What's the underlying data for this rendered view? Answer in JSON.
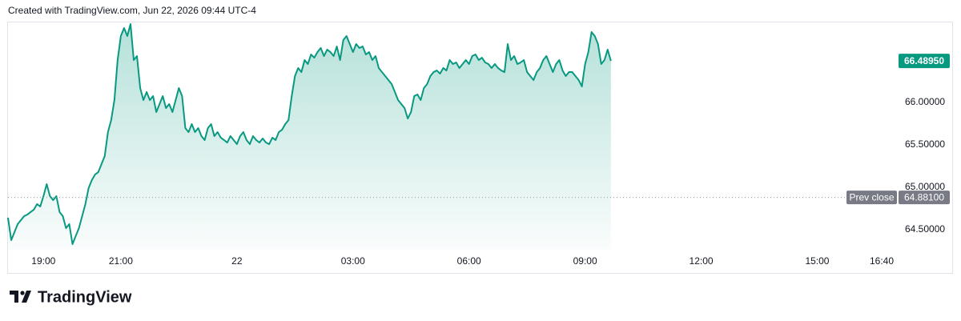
{
  "header": "Created with TradingView.com, Jun 22, 2026 09:44 UTC-4",
  "footer": {
    "brand": "TradingView"
  },
  "chart_data": {
    "type": "area",
    "color": "#089981",
    "x": [
      -355,
      -350,
      -345,
      -340,
      -335,
      -330,
      -325,
      -320,
      -315,
      -310,
      -305,
      -300,
      -295,
      -290,
      -285,
      -280,
      -275,
      -270,
      -265,
      -260,
      -255,
      -250,
      -245,
      -240,
      -235,
      -230,
      -225,
      -220,
      -215,
      -210,
      -205,
      -200,
      -195,
      -190,
      -185,
      -180,
      -175,
      -170,
      -165,
      -160,
      -155,
      -150,
      -145,
      -140,
      -135,
      -130,
      -125,
      -120,
      -115,
      -110,
      -105,
      -100,
      -95,
      -90,
      -85,
      -80,
      -75,
      -70,
      -65,
      -60,
      -55,
      -50,
      -45,
      -40,
      -35,
      -30,
      -25,
      -20,
      -15,
      -10,
      -5,
      0,
      5,
      10,
      15,
      20,
      25,
      30,
      35,
      40,
      45,
      50,
      55,
      60,
      65,
      70,
      75,
      80,
      85,
      90,
      95,
      100,
      105,
      110,
      115,
      120,
      125,
      130,
      135,
      140,
      145,
      150,
      155,
      160,
      165,
      170,
      175,
      180,
      185,
      190,
      195,
      200,
      205,
      210,
      215,
      220,
      225,
      230,
      235,
      240,
      245,
      250,
      255,
      260,
      265,
      270,
      275,
      280,
      285,
      290,
      295,
      300,
      305,
      310,
      315,
      320,
      325,
      330,
      335,
      340,
      345,
      350,
      355,
      360,
      365,
      370,
      375,
      380,
      385,
      390,
      395,
      400,
      405,
      410,
      415,
      420,
      425,
      430,
      435,
      440,
      445,
      450,
      455,
      460,
      465,
      470,
      475,
      480,
      485,
      490,
      495,
      500,
      505,
      510,
      515,
      520,
      525,
      530,
      535,
      540,
      545,
      550,
      555,
      560,
      565,
      570,
      575,
      580
    ],
    "values": [
      64.642,
      64.377,
      64.472,
      64.566,
      64.613,
      64.66,
      64.679,
      64.708,
      64.736,
      64.802,
      64.774,
      64.896,
      65.038,
      64.896,
      64.849,
      64.896,
      64.708,
      64.66,
      64.519,
      64.566,
      64.33,
      64.425,
      64.519,
      64.66,
      64.802,
      64.991,
      65.085,
      65.151,
      65.179,
      65.274,
      65.368,
      65.651,
      65.792,
      66.028,
      66.5,
      66.783,
      66.877,
      66.783,
      66.925,
      66.5,
      66.547,
      66.17,
      66.028,
      66.123,
      66.028,
      66.075,
      65.887,
      65.981,
      66.075,
      65.934,
      65.981,
      65.887,
      66.028,
      66.17,
      66.075,
      65.698,
      65.651,
      65.745,
      65.651,
      65.698,
      65.604,
      65.557,
      65.698,
      65.745,
      65.604,
      65.651,
      65.585,
      65.557,
      65.528,
      65.604,
      65.557,
      65.509,
      65.604,
      65.651,
      65.557,
      65.509,
      65.604,
      65.557,
      65.528,
      65.575,
      65.528,
      65.509,
      65.585,
      65.557,
      65.651,
      65.679,
      65.745,
      65.792,
      66.075,
      66.311,
      66.406,
      66.358,
      66.5,
      66.453,
      66.566,
      66.528,
      66.594,
      66.642,
      66.547,
      66.623,
      66.594,
      66.547,
      66.66,
      66.5,
      66.736,
      66.783,
      66.689,
      66.594,
      66.689,
      66.642,
      66.66,
      66.566,
      66.594,
      66.5,
      66.547,
      66.406,
      66.358,
      66.311,
      66.264,
      66.217,
      66.123,
      66.028,
      65.981,
      65.934,
      65.811,
      65.887,
      66.075,
      66.094,
      66.028,
      66.17,
      66.217,
      66.311,
      66.358,
      66.377,
      66.34,
      66.406,
      66.377,
      66.5,
      66.453,
      66.472,
      66.406,
      66.453,
      66.5,
      66.453,
      66.547,
      66.566,
      66.5,
      66.528,
      66.472,
      66.453,
      66.406,
      66.453,
      66.406,
      66.377,
      66.358,
      66.689,
      66.5,
      66.547,
      66.453,
      66.472,
      66.5,
      66.358,
      66.311,
      66.264,
      66.358,
      66.406,
      66.5,
      66.547,
      66.453,
      66.358,
      66.453,
      66.5,
      66.377,
      66.311,
      66.358,
      66.358,
      66.311,
      66.264,
      66.189,
      66.453,
      66.594,
      66.83,
      66.783,
      66.689,
      66.453,
      66.5,
      66.623,
      66.4895
    ],
    "xlim": [
      -355,
      1000
    ],
    "xticks": [
      {
        "value": -300,
        "label": "19:00"
      },
      {
        "value": -180,
        "label": "21:00"
      },
      {
        "value": 0,
        "label": "22"
      },
      {
        "value": 180,
        "label": "03:00"
      },
      {
        "value": 360,
        "label": "06:00"
      },
      {
        "value": 540,
        "label": "09:00"
      },
      {
        "value": 720,
        "label": "12:00"
      },
      {
        "value": 900,
        "label": "15:00"
      },
      {
        "value": 1000,
        "label": "16:40"
      }
    ],
    "ylim": [
      64.264,
      66.953
    ],
    "yticks": [
      {
        "value": 64.5,
        "label": "64.50000"
      },
      {
        "value": 65,
        "label": "65.00000"
      },
      {
        "value": 65.5,
        "label": "65.50000"
      },
      {
        "value": 66,
        "label": "66.00000"
      }
    ],
    "last_price": {
      "value": 66.4895,
      "label": "66.48950"
    },
    "prev_close": {
      "label": "Prev close",
      "value": 64.881,
      "value_label": "64.88100"
    }
  }
}
